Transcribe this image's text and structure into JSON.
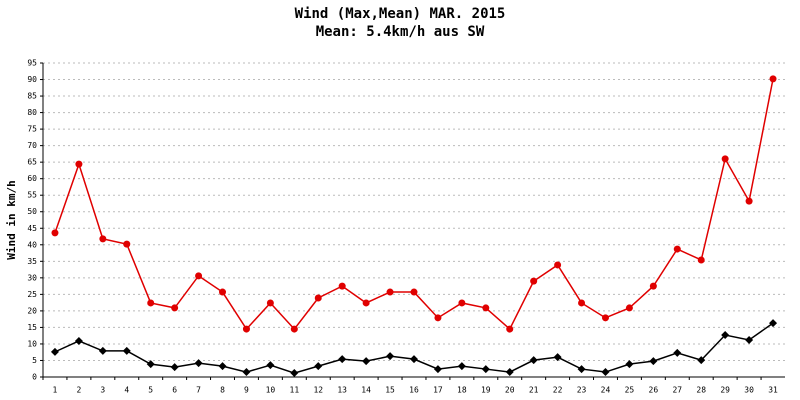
{
  "chart_data": {
    "type": "line",
    "title": "Wind (Max,Mean) MAR. 2015",
    "subtitle": "Mean: 5.4km/h aus SW",
    "y_label": "Wind in km/h",
    "categories": [
      "1",
      "2",
      "3",
      "4",
      "5",
      "6",
      "7",
      "8",
      "9",
      "10",
      "11",
      "12",
      "13",
      "14",
      "15",
      "16",
      "17",
      "18",
      "19",
      "20",
      "21",
      "22",
      "23",
      "24",
      "25",
      "26",
      "27",
      "28",
      "29",
      "30",
      "31"
    ],
    "series": [
      {
        "color": "#e00000",
        "marker": "circle",
        "values": [
          43.6,
          64.4,
          41.8,
          40.2,
          22.4,
          20.9,
          30.6,
          25.7,
          14.5,
          22.4,
          14.5,
          23.9,
          27.5,
          22.4,
          25.7,
          25.7,
          17.9,
          22.4,
          20.9,
          14.5,
          29.0,
          33.9,
          22.4,
          17.9,
          20.9,
          27.5,
          38.7,
          35.4,
          66.0,
          53.2,
          90.2
        ]
      },
      {
        "color": "#000000",
        "marker": "diamond",
        "values": [
          7.6,
          10.9,
          7.9,
          7.9,
          3.9,
          3.0,
          4.2,
          3.3,
          1.5,
          3.6,
          1.2,
          3.3,
          5.4,
          4.8,
          6.3,
          5.4,
          2.4,
          3.3,
          2.4,
          1.5,
          5.1,
          6.0,
          2.4,
          1.5,
          3.9,
          4.8,
          7.3,
          5.1,
          12.7,
          11.2,
          16.3
        ]
      }
    ],
    "ylim": [
      0,
      95
    ],
    "yticks": [
      0,
      5,
      10,
      15,
      20,
      25,
      30,
      35,
      40,
      45,
      50,
      55,
      60,
      65,
      70,
      75,
      80,
      85,
      90,
      95
    ],
    "grid": true
  }
}
